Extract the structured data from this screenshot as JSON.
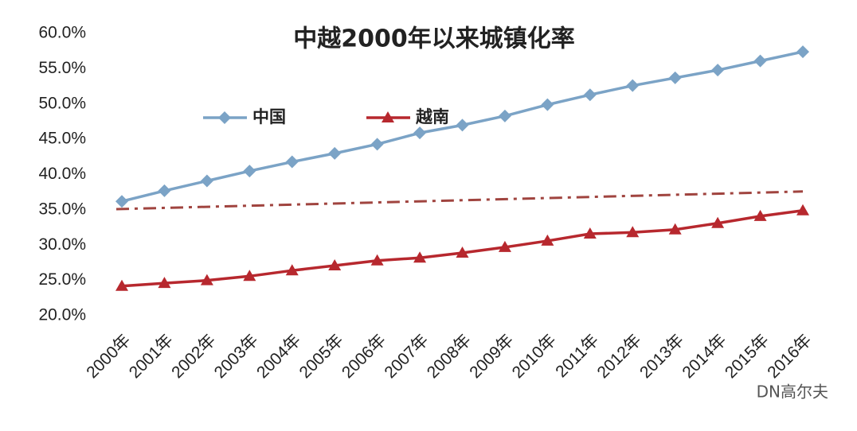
{
  "chart_data": {
    "type": "line",
    "title": "中越2000年以来城镇化率",
    "categories": [
      "2000年",
      "2001年",
      "2002年",
      "2003年",
      "2004年",
      "2005年",
      "2006年",
      "2007年",
      "2008年",
      "2009年",
      "2010年",
      "2011年",
      "2012年",
      "2013年",
      "2014年",
      "2015年",
      "2016年"
    ],
    "series": [
      {
        "name": "中国",
        "color": "#7ba3c6",
        "marker": "diamond",
        "values": [
          36.2,
          37.7,
          39.1,
          40.5,
          41.8,
          43.0,
          44.3,
          45.9,
          47.0,
          48.3,
          49.9,
          51.3,
          52.6,
          53.7,
          54.8,
          56.1,
          57.4
        ]
      },
      {
        "name": "越南",
        "color": "#b7282e",
        "marker": "triangle",
        "values": [
          24.2,
          24.6,
          25.0,
          25.6,
          26.4,
          27.1,
          27.8,
          28.2,
          28.9,
          29.7,
          30.6,
          31.6,
          31.8,
          32.2,
          33.1,
          34.1,
          34.9
        ]
      }
    ],
    "trendline": {
      "color": "#a0443f",
      "values": [
        35.1,
        37.6
      ]
    },
    "ylim": [
      20,
      60
    ],
    "yticks": [
      {
        "value": 20,
        "label": "20.0%"
      },
      {
        "value": 25,
        "label": "25.0%"
      },
      {
        "value": 30,
        "label": "30.0%"
      },
      {
        "value": 35,
        "label": "35.0%"
      },
      {
        "value": 40,
        "label": "40.0%"
      },
      {
        "value": 45,
        "label": "45.0%"
      },
      {
        "value": 50,
        "label": "50.0%"
      },
      {
        "value": 55,
        "label": "55.0%"
      },
      {
        "value": 60,
        "label": "60.0%"
      }
    ],
    "grid": false,
    "legend": "top",
    "watermark": "DN高尔夫"
  }
}
